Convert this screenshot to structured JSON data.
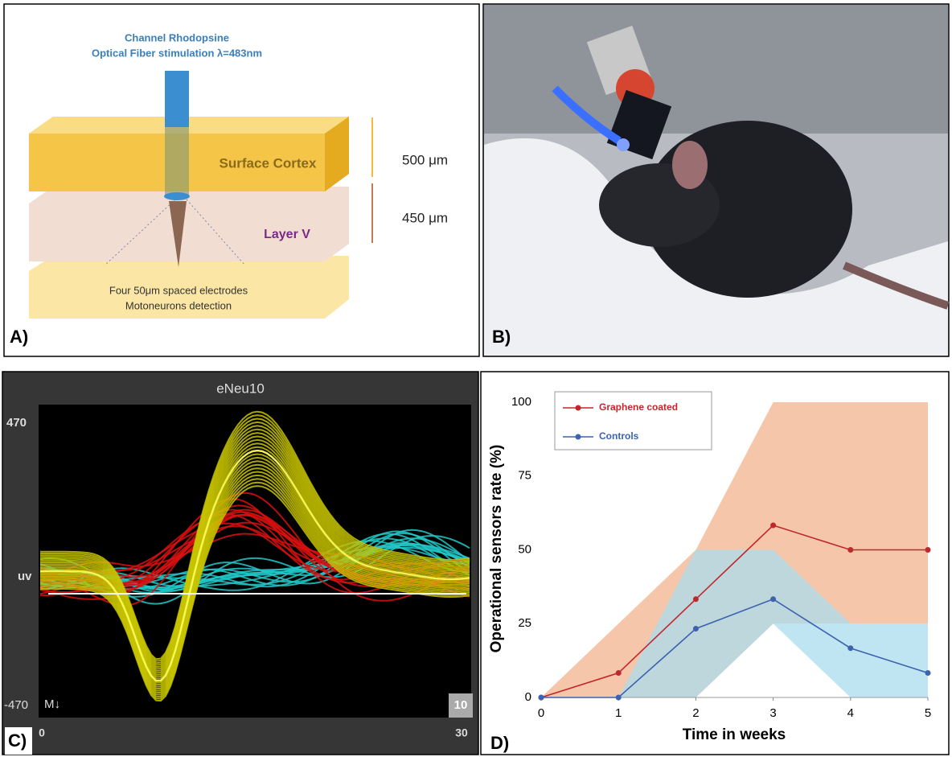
{
  "panel_a": {
    "fiber_title": "Channel Rhodopsine",
    "fiber_subtitle": "Optical Fiber stimulation λ=483nm",
    "layer_top": "Surface Cortex",
    "layer_mid": "Layer V",
    "depth_top": "500 μm",
    "depth_mid": "450 μm",
    "electrodes": "Four 50μm spaced electrodes",
    "detection": "Motoneurons detection",
    "label": "A)"
  },
  "panel_b": {
    "label": "B)"
  },
  "panel_c": {
    "title": "eNeu10",
    "y_top": "470",
    "y_mid": "uv",
    "y_bottom": "-470",
    "x_left": "0",
    "x_right": "30",
    "marker": "M↓",
    "count": "10",
    "label": "C)"
  },
  "chart_data": {
    "type": "line",
    "label": "D)",
    "xlabel": "Time in weeks",
    "ylabel": "Operational sensors rate (%)",
    "x": [
      0,
      1,
      2,
      3,
      4,
      5
    ],
    "series": [
      {
        "name": "Graphene coated",
        "color": "#c0282d",
        "band_color": "#f5c6a9",
        "values": [
          0,
          8.3,
          33.3,
          58.3,
          50,
          50
        ],
        "lower": [
          0,
          0,
          0,
          25,
          25,
          25
        ],
        "upper": [
          0,
          25,
          50,
          100,
          100,
          100
        ]
      },
      {
        "name": "Controls",
        "color": "#3d62b0",
        "band_color": "#a9dcef",
        "values": [
          0,
          0,
          23.3,
          33.3,
          16.7,
          8.3
        ],
        "lower": [
          0,
          0,
          0,
          25,
          0,
          0
        ],
        "upper": [
          0,
          0,
          50,
          50,
          25,
          25
        ]
      }
    ],
    "xlim": [
      0,
      5
    ],
    "ylim": [
      0,
      100
    ],
    "xticks": [
      0,
      1,
      2,
      3,
      4,
      5
    ],
    "yticks": [
      0,
      25,
      50,
      75,
      100
    ]
  }
}
